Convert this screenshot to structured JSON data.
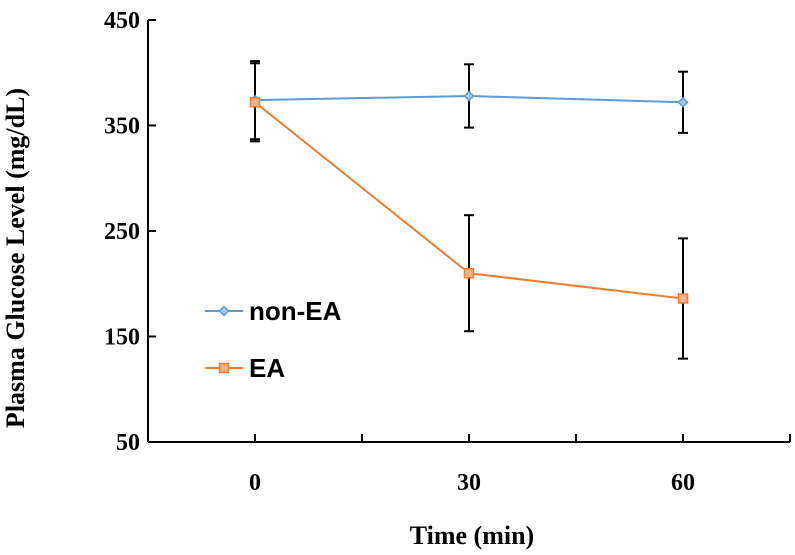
{
  "chart_data": {
    "type": "line",
    "title": "",
    "xlabel": "Time (min)",
    "ylabel": "Plasma Glucose Level (mg/dL)",
    "x": [
      0,
      30,
      60
    ],
    "x_tick_labels": [
      "0",
      "30",
      "60"
    ],
    "xlim": [
      -15,
      75
    ],
    "ylim": [
      50,
      450
    ],
    "y_ticks": [
      50,
      150,
      250,
      350,
      450
    ],
    "y_tick_labels": [
      "50",
      "150",
      "250",
      "350",
      "450"
    ],
    "grid": false,
    "legend_position": "center-left",
    "series": [
      {
        "name": "non-EA",
        "values": [
          374,
          378,
          372
        ],
        "errors": [
          37,
          30,
          29
        ],
        "color": "#5b9bd5",
        "marker": "diamond"
      },
      {
        "name": "EA",
        "values": [
          372,
          210,
          186
        ],
        "errors": [
          37,
          55,
          57
        ],
        "color": "#ed7d31",
        "marker": "square"
      }
    ]
  }
}
